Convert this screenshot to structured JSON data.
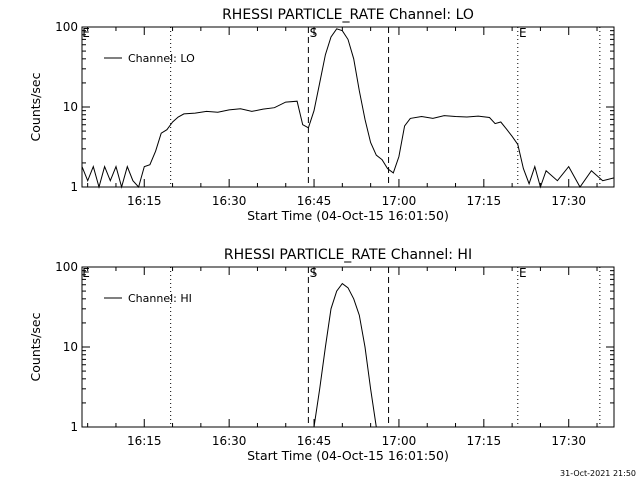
{
  "footer": {
    "timestamp": "31-Oct-2021 21:50"
  },
  "chart_data": [
    {
      "type": "line",
      "title": "RHESSI PARTICLE_RATE Channel: LO",
      "xlabel": "Start Time (04-Oct-15 16:01:50)",
      "ylabel": "Counts/sec",
      "yscale": "log",
      "xlim": [
        "16:04:00",
        "17:38:00"
      ],
      "ylim": [
        1,
        100
      ],
      "xtick_labels": [
        "16:15",
        "16:30",
        "16:45",
        "17:00",
        "17:15",
        "17:30"
      ],
      "ytick_labels": [
        "1",
        "10",
        "100"
      ],
      "legend": {
        "entries": [
          "Channel: LO"
        ],
        "placement": "top-left"
      },
      "series": [
        {
          "name": "Channel: LO",
          "x": [
            "16:04:00",
            "16:05:00",
            "16:06:00",
            "16:07:00",
            "16:08:00",
            "16:09:00",
            "16:10:00",
            "16:11:00",
            "16:12:00",
            "16:13:00",
            "16:14:00",
            "16:15:00",
            "16:16:00",
            "16:17:00",
            "16:18:00",
            "16:19:00",
            "16:20:00",
            "16:21:00",
            "16:22:00",
            "16:24:00",
            "16:26:00",
            "16:28:00",
            "16:30:00",
            "16:32:00",
            "16:34:00",
            "16:36:00",
            "16:38:00",
            "16:40:00",
            "16:42:00",
            "16:43:00",
            "16:44:00",
            "16:45:00",
            "16:46:00",
            "16:47:00",
            "16:48:00",
            "16:49:00",
            "16:50:00",
            "16:51:00",
            "16:52:00",
            "16:53:00",
            "16:54:00",
            "16:55:00",
            "16:56:00",
            "16:57:00",
            "16:58:00",
            "16:59:00",
            "17:00:00",
            "17:01:00",
            "17:02:00",
            "17:04:00",
            "17:06:00",
            "17:08:00",
            "17:10:00",
            "17:12:00",
            "17:14:00",
            "17:16:00",
            "17:17:00",
            "17:18:00",
            "17:19:00",
            "17:20:00",
            "17:21:00",
            "17:22:00",
            "17:23:00",
            "17:24:00",
            "17:25:00",
            "17:26:00",
            "17:28:00",
            "17:30:00",
            "17:32:00",
            "17:34:00",
            "17:36:00",
            "17:38:00"
          ],
          "values": [
            1.8,
            1.2,
            1.8,
            1.0,
            1.8,
            1.2,
            1.8,
            1.0,
            1.8,
            1.2,
            1.0,
            1.8,
            1.9,
            2.8,
            4.7,
            5.2,
            6.5,
            7.5,
            8.2,
            8.4,
            8.8,
            8.6,
            9.2,
            9.5,
            8.8,
            9.4,
            9.8,
            11.5,
            11.8,
            6.0,
            5.5,
            9.0,
            20,
            45,
            75,
            95,
            90,
            70,
            40,
            16,
            7.0,
            3.6,
            2.5,
            2.2,
            1.7,
            1.5,
            2.4,
            5.8,
            7.2,
            7.6,
            7.2,
            7.8,
            7.6,
            7.5,
            7.7,
            7.4,
            6.2,
            6.5,
            5.3,
            4.3,
            3.4,
            1.7,
            1.1,
            1.8,
            1.0,
            1.6,
            1.2,
            1.8,
            1.0,
            1.6,
            1.2,
            1.3
          ]
        }
      ],
      "annotations": [
        {
          "label": "E",
          "x": "16:04:00",
          "style": "text"
        },
        {
          "label": "S",
          "x": "16:44:00",
          "style": "dashed"
        },
        {
          "x": "16:58:10",
          "style": "dashed"
        },
        {
          "label": "E",
          "x": "17:21:00",
          "style": "dotted"
        },
        {
          "x": "16:19:40",
          "style": "dotted"
        },
        {
          "x": "17:35:30",
          "style": "dotted"
        }
      ]
    },
    {
      "type": "line",
      "title": "RHESSI PARTICLE_RATE Channel: HI",
      "xlabel": "Start Time (04-Oct-15 16:01:50)",
      "ylabel": "Counts/sec",
      "yscale": "log",
      "xlim": [
        "16:04:00",
        "17:38:00"
      ],
      "ylim": [
        1,
        100
      ],
      "xtick_labels": [
        "16:15",
        "16:30",
        "16:45",
        "17:00",
        "17:15",
        "17:30"
      ],
      "ytick_labels": [
        "1",
        "10",
        "100"
      ],
      "legend": {
        "entries": [
          "Channel: HI"
        ],
        "placement": "top-left"
      },
      "series": [
        {
          "name": "Channel: HI",
          "x": [
            "16:45:00",
            "16:46:00",
            "16:47:00",
            "16:48:00",
            "16:49:00",
            "16:50:00",
            "16:51:00",
            "16:52:00",
            "16:53:00",
            "16:54:00",
            "16:55:00",
            "16:56:00"
          ],
          "values": [
            1.0,
            3.0,
            10,
            30,
            50,
            62,
            55,
            40,
            25,
            10,
            3.0,
            1.0
          ]
        }
      ],
      "annotations": [
        {
          "label": "E",
          "x": "16:04:00",
          "style": "text"
        },
        {
          "label": "S",
          "x": "16:44:00",
          "style": "dashed"
        },
        {
          "x": "16:58:10",
          "style": "dashed"
        },
        {
          "label": "E",
          "x": "17:21:00",
          "style": "dotted"
        },
        {
          "x": "16:19:40",
          "style": "dotted"
        },
        {
          "x": "17:35:30",
          "style": "dotted"
        }
      ]
    }
  ]
}
